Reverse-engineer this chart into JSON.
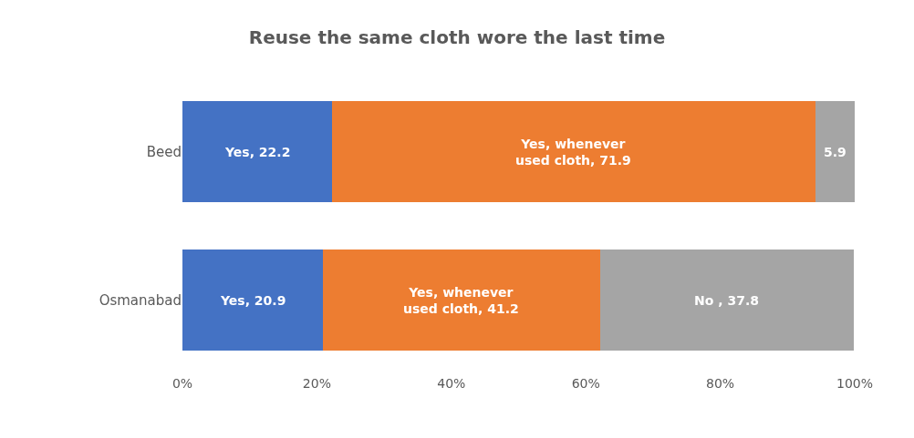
{
  "chart_data": {
    "type": "bar",
    "orientation": "horizontal",
    "stacked": true,
    "title": "Reuse the same cloth wore the last time",
    "categories": [
      "Beed",
      "Osmanabad"
    ],
    "series": [
      {
        "color": "#4472c4",
        "values": [
          22.2,
          20.9
        ],
        "value_labels": [
          "Yes, 22.2",
          "Yes, 20.9"
        ]
      },
      {
        "color": "#ed7d31",
        "values": [
          71.9,
          41.2
        ],
        "value_labels": [
          "Yes, whenever\nused cloth, 71.9",
          "Yes, whenever\nused cloth, 41.2"
        ]
      },
      {
        "color": "#a5a5a5",
        "values": [
          5.9,
          37.8
        ],
        "value_labels": [
          "5.9",
          "No , 37.8"
        ]
      }
    ],
    "xlim": [
      0,
      100
    ],
    "xticks": [
      {
        "value": 0,
        "label": "0%"
      },
      {
        "value": 20,
        "label": "20%"
      },
      {
        "value": 40,
        "label": "40%"
      },
      {
        "value": 60,
        "label": "60%"
      },
      {
        "value": 80,
        "label": "80%"
      },
      {
        "value": 100,
        "label": "100%"
      }
    ]
  }
}
